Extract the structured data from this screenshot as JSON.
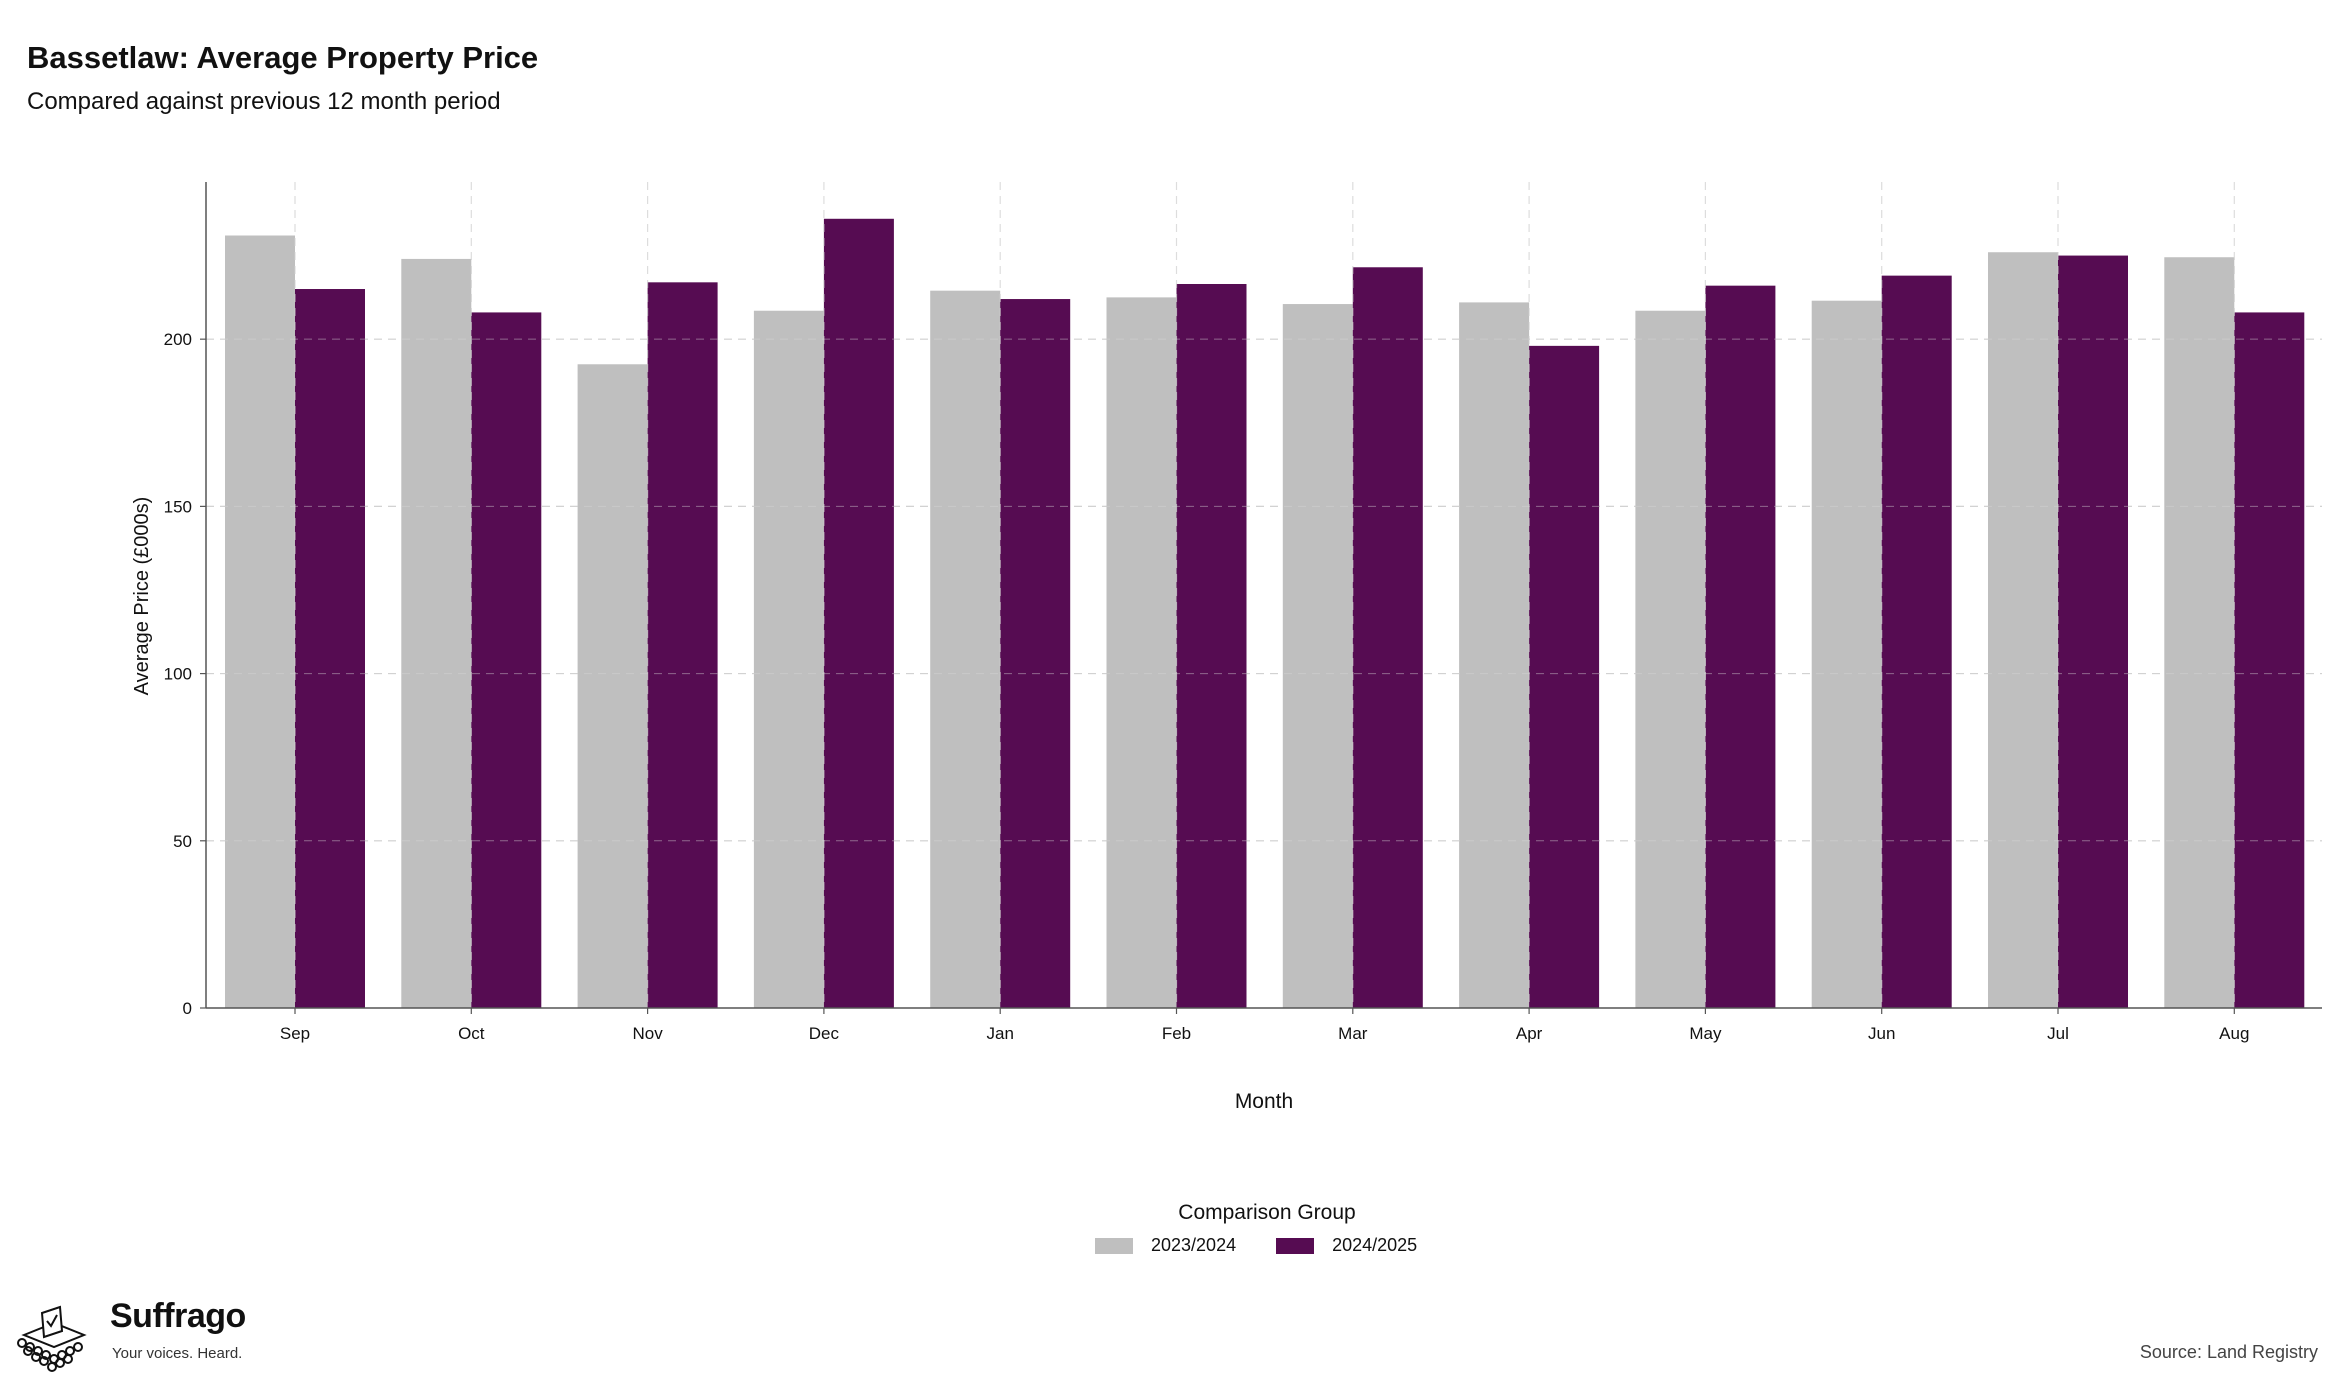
{
  "header": {
    "title": "Bassetlaw: Average Property Price",
    "subtitle": "Compared against previous 12 month period"
  },
  "legend": {
    "title": "Comparison Group",
    "items": [
      {
        "label": "2023/2024",
        "color": "#bfbfbf"
      },
      {
        "label": "2024/2025",
        "color": "#560c52"
      }
    ]
  },
  "footer": {
    "brand_name": "Suffrago",
    "brand_tagline": "Your voices. Heard.",
    "source": "Source: Land Registry"
  },
  "chart_data": {
    "type": "bar",
    "title": "Bassetlaw: Average Property Price",
    "subtitle": "Compared against previous 12 month period",
    "xlabel": "Month",
    "ylabel": "Average Price (£000s)",
    "ylim": [
      0,
      247
    ],
    "yticks": [
      0,
      50,
      100,
      150,
      200
    ],
    "grid": true,
    "legend_position": "bottom",
    "categories": [
      "Sep",
      "Oct",
      "Nov",
      "Dec",
      "Jan",
      "Feb",
      "Mar",
      "Apr",
      "May",
      "Jun",
      "Jul",
      "Aug"
    ],
    "series": [
      {
        "name": "2023/2024",
        "color": "#bfbfbf",
        "values": [
          231,
          224,
          192.5,
          208.5,
          214.5,
          212.5,
          210.5,
          211,
          208.5,
          211.5,
          226,
          224.5
        ]
      },
      {
        "name": "2024/2025",
        "color": "#560c52",
        "values": [
          215,
          208,
          217,
          236,
          212,
          216.5,
          221.5,
          198,
          216,
          219,
          225,
          208
        ]
      }
    ]
  }
}
